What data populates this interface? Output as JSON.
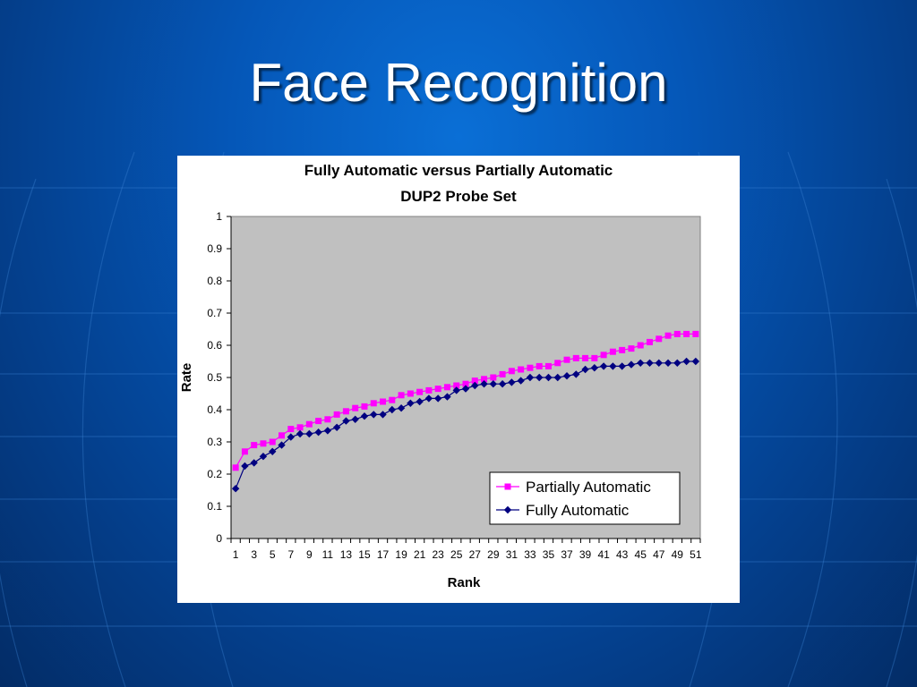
{
  "slide": {
    "title": "Face Recognition"
  },
  "chart_data": {
    "type": "line",
    "title": [
      "Fully Automatic versus Partially Automatic",
      "DUP2 Probe Set"
    ],
    "xlabel": "Rank",
    "ylabel": "Rate",
    "ylim": [
      0,
      1
    ],
    "yticks": [
      "0",
      "0.1",
      "0.2",
      "0.3",
      "0.4",
      "0.5",
      "0.6",
      "0.7",
      "0.8",
      "0.9",
      "1"
    ],
    "x": [
      1,
      2,
      3,
      4,
      5,
      6,
      7,
      8,
      9,
      10,
      11,
      12,
      13,
      14,
      15,
      16,
      17,
      18,
      19,
      20,
      21,
      22,
      23,
      24,
      25,
      26,
      27,
      28,
      29,
      30,
      31,
      32,
      33,
      34,
      35,
      36,
      37,
      38,
      39,
      40,
      41,
      42,
      43,
      44,
      45,
      46,
      47,
      48,
      49,
      50,
      51
    ],
    "xticks": [
      "1",
      "3",
      "5",
      "7",
      "9",
      "11",
      "13",
      "15",
      "17",
      "19",
      "21",
      "23",
      "25",
      "27",
      "29",
      "31",
      "33",
      "35",
      "37",
      "39",
      "41",
      "43",
      "45",
      "47",
      "49",
      "51"
    ],
    "grid": false,
    "plot_background": "#c0c0c0",
    "legend_position": "bottom-right",
    "series": [
      {
        "name": "Partially Automatic",
        "color": "#ff00ff",
        "marker": "square",
        "values": [
          0.22,
          0.27,
          0.29,
          0.295,
          0.3,
          0.32,
          0.34,
          0.345,
          0.355,
          0.365,
          0.37,
          0.385,
          0.395,
          0.405,
          0.41,
          0.42,
          0.425,
          0.43,
          0.445,
          0.45,
          0.455,
          0.46,
          0.465,
          0.47,
          0.475,
          0.48,
          0.49,
          0.495,
          0.5,
          0.51,
          0.52,
          0.525,
          0.53,
          0.535,
          0.535,
          0.545,
          0.555,
          0.56,
          0.56,
          0.56,
          0.57,
          0.58,
          0.585,
          0.59,
          0.6,
          0.61,
          0.62,
          0.63,
          0.635,
          0.635,
          0.635
        ]
      },
      {
        "name": "Fully Automatic",
        "color": "#000080",
        "marker": "diamond",
        "values": [
          0.155,
          0.225,
          0.235,
          0.255,
          0.27,
          0.29,
          0.315,
          0.325,
          0.325,
          0.33,
          0.335,
          0.345,
          0.365,
          0.37,
          0.38,
          0.385,
          0.385,
          0.4,
          0.405,
          0.42,
          0.425,
          0.435,
          0.435,
          0.44,
          0.46,
          0.465,
          0.475,
          0.48,
          0.48,
          0.48,
          0.485,
          0.49,
          0.5,
          0.5,
          0.5,
          0.5,
          0.505,
          0.51,
          0.525,
          0.53,
          0.535,
          0.535,
          0.535,
          0.54,
          0.545,
          0.545,
          0.545,
          0.545,
          0.545,
          0.55,
          0.55
        ]
      }
    ]
  }
}
